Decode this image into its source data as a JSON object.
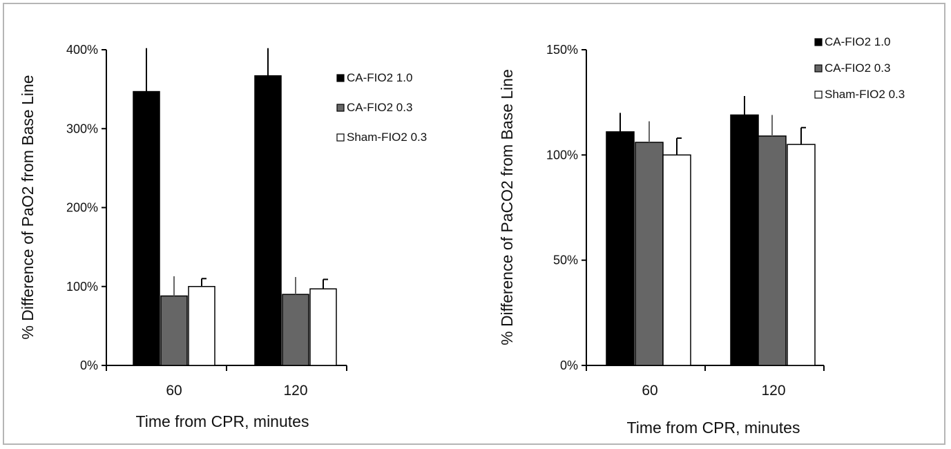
{
  "chart_data": [
    {
      "type": "bar",
      "categories": [
        "60",
        "120"
      ],
      "series": [
        {
          "name": "CA-FIO2 1.0",
          "values": [
            3.47,
            3.67
          ],
          "errors": [
            0.55,
            0.35
          ],
          "color": "#000000"
        },
        {
          "name": "CA-FIO2 0.3",
          "values": [
            0.88,
            0.9
          ],
          "errors": [
            0.25,
            0.22
          ],
          "color": "#666666"
        },
        {
          "name": "Sham-FIO2 0.3",
          "values": [
            1.0,
            0.97
          ],
          "errors": [
            0.1,
            0.12
          ],
          "color": "#ffffff"
        }
      ],
      "yticks": [
        "0%",
        "100%",
        "200%",
        "300%",
        "400%"
      ],
      "ylim": [
        0,
        4
      ],
      "xlabel": "Time  from CPR, minutes",
      "ylabel": "% Difference of PaO2 from Base Line",
      "legend_position": "right"
    },
    {
      "type": "bar",
      "categories": [
        "60",
        "120"
      ],
      "series": [
        {
          "name": "CA-FIO2 1.0",
          "values": [
            1.11,
            1.19
          ],
          "errors": [
            0.09,
            0.09
          ],
          "color": "#000000"
        },
        {
          "name": "CA-FIO2 0.3",
          "values": [
            1.06,
            1.09
          ],
          "errors": [
            0.1,
            0.1
          ],
          "color": "#666666"
        },
        {
          "name": "Sham-FIO2 0.3",
          "values": [
            1.0,
            1.05
          ],
          "errors": [
            0.08,
            0.08
          ],
          "color": "#ffffff"
        }
      ],
      "yticks": [
        "0%",
        "50%",
        "100%",
        "150%"
      ],
      "ylim": [
        0,
        1.5
      ],
      "xlabel": "Time  from CPR, minutes",
      "ylabel": "% Difference of PaCO2 from Base Line",
      "legend_position": "top-right"
    }
  ]
}
